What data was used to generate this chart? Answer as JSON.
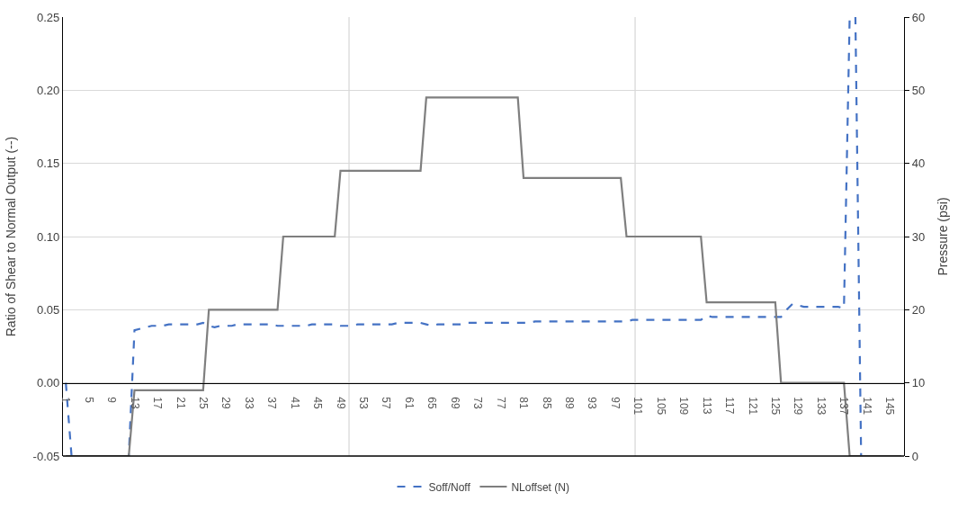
{
  "chart_data": {
    "type": "line",
    "ylabel": "Ratio of Shear to Normal Output (--)",
    "y2label": "Pressure (psi)",
    "categories": [
      "1",
      null,
      null,
      null,
      "5",
      null,
      null,
      null,
      "9",
      null,
      null,
      null,
      "13",
      null,
      null,
      null,
      "17",
      null,
      null,
      null,
      "21",
      null,
      null,
      null,
      "25",
      null,
      null,
      null,
      "29",
      null,
      null,
      null,
      "33",
      null,
      null,
      null,
      "37",
      null,
      null,
      null,
      "41",
      null,
      null,
      null,
      "45",
      null,
      null,
      null,
      "49",
      null,
      null,
      null,
      "53",
      null,
      null,
      null,
      "57",
      null,
      null,
      null,
      "61",
      null,
      null,
      null,
      "65",
      null,
      null,
      null,
      "69",
      null,
      null,
      null,
      "73",
      null,
      null,
      null,
      "77",
      null,
      null,
      null,
      "81",
      null,
      null,
      null,
      "85",
      null,
      null,
      null,
      "89",
      null,
      null,
      null,
      "93",
      null,
      null,
      null,
      "97",
      null,
      null,
      null,
      "101",
      null,
      null,
      null,
      "105",
      null,
      null,
      null,
      "109",
      null,
      null,
      null,
      "113",
      null,
      null,
      null,
      "117",
      null,
      null,
      null,
      "121",
      null,
      null,
      null,
      "125",
      null,
      null,
      null,
      "129",
      null,
      null,
      null,
      "133",
      null,
      null,
      null,
      "137",
      null,
      null,
      null,
      "141",
      null,
      null,
      null,
      "145",
      null,
      null
    ],
    "series": [
      {
        "name": "Soff/Noff",
        "color": "#4472c4",
        "line_style": "dashed",
        "values": [
          0,
          -0.05,
          -0.05,
          null,
          null,
          null,
          null,
          null,
          null,
          null,
          -0.05,
          -0.05,
          0.036,
          0.037,
          0.038,
          0.039,
          0.039,
          0.039,
          0.04,
          0.04,
          0.04,
          0.04,
          0.04,
          0.04,
          0.041,
          0.039,
          0.038,
          0.039,
          0.039,
          0.039,
          0.04,
          0.04,
          0.04,
          0.04,
          0.04,
          0.04,
          0.04,
          0.039,
          0.039,
          0.039,
          0.039,
          0.039,
          0.039,
          0.04,
          0.04,
          0.04,
          0.04,
          0.04,
          0.039,
          0.039,
          0.039,
          0.04,
          0.04,
          0.04,
          0.04,
          0.04,
          0.04,
          0.04,
          0.041,
          0.041,
          0.041,
          0.041,
          0.041,
          0.04,
          0.039,
          0.04,
          0.04,
          0.04,
          0.04,
          0.04,
          0.041,
          0.041,
          0.041,
          0.041,
          0.041,
          0.041,
          0.041,
          0.041,
          0.041,
          0.041,
          0.041,
          0.041,
          0.042,
          0.042,
          0.042,
          0.042,
          0.042,
          0.042,
          0.042,
          0.042,
          0.042,
          0.042,
          0.042,
          0.042,
          0.042,
          0.042,
          0.042,
          0.042,
          0.042,
          0.043,
          0.043,
          0.043,
          0.043,
          0.043,
          0.043,
          0.043,
          0.043,
          0.043,
          0.043,
          0.043,
          0.043,
          0.043,
          0.046,
          0.045,
          0.045,
          0.045,
          0.045,
          0.045,
          0.045,
          0.045,
          0.045,
          0.045,
          0.045,
          0.045,
          0.045,
          0.045,
          0.05,
          0.054,
          0.053,
          0.052,
          0.052,
          0.052,
          0.052,
          0.052,
          0.052,
          0.052,
          0.051,
          0.25,
          0.25,
          -0.05,
          -0.05,
          null,
          null,
          null,
          null,
          null,
          null
        ]
      },
      {
        "name": "NLoffset (N)",
        "color": "#7f7f7f",
        "line_style": "solid",
        "axis": "y2",
        "values": [
          0,
          0,
          0,
          0,
          0,
          0,
          0,
          0,
          0,
          0,
          0,
          0,
          9,
          9,
          9,
          9,
          9,
          9,
          9,
          9,
          9,
          9,
          9,
          9,
          9,
          20,
          20,
          20,
          20,
          20,
          20,
          20,
          20,
          20,
          20,
          20,
          20,
          20,
          30,
          30,
          30,
          30,
          30,
          30,
          30,
          30,
          30,
          30,
          39,
          39,
          39,
          39,
          39,
          39,
          39,
          39,
          39,
          39,
          39,
          39,
          39,
          39,
          39,
          49,
          49,
          49,
          49,
          49,
          49,
          49,
          49,
          49,
          49,
          49,
          49,
          49,
          49,
          49,
          49,
          49,
          38,
          38,
          38,
          38,
          38,
          38,
          38,
          38,
          38,
          38,
          38,
          38,
          38,
          38,
          38,
          38,
          38,
          38,
          30,
          30,
          30,
          30,
          30,
          30,
          30,
          30,
          30,
          30,
          30,
          30,
          30,
          30,
          21,
          21,
          21,
          21,
          21,
          21,
          21,
          21,
          21,
          21,
          21,
          21,
          21,
          10,
          10,
          10,
          10,
          10,
          10,
          10,
          10,
          10,
          10,
          10,
          10,
          0,
          0,
          0,
          0,
          0,
          0,
          0,
          0,
          0,
          0
        ]
      }
    ],
    "ylim": [
      -0.05,
      0.25
    ],
    "yticks": [
      {
        "value": -0.05,
        "label": "-0.05"
      },
      {
        "value": 0,
        "label": "0.00"
      },
      {
        "value": 0.05,
        "label": "0.05"
      },
      {
        "value": 0.1,
        "label": "0.10"
      },
      {
        "value": 0.15,
        "label": "0.15"
      },
      {
        "value": 0.2,
        "label": "0.20"
      },
      {
        "value": 0.25,
        "label": "0.25"
      }
    ],
    "y2lim": [
      0,
      60
    ],
    "y2ticks": [
      0,
      10,
      20,
      30,
      40,
      50,
      60
    ],
    "grid": true,
    "legend": "bottom"
  }
}
